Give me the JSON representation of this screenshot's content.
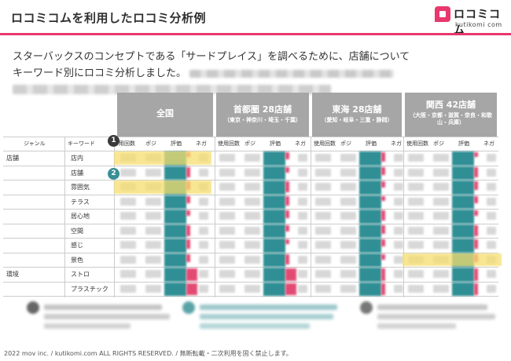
{
  "header": {
    "title": "ロコミコムを利用したロコミ分析例",
    "logo_jp": "ロコミコム",
    "logo_en": "kutikomi com",
    "accent_color": "#e8386d"
  },
  "intro": {
    "line1": "スターバックスのコンセプトである「サードプレイス」を調べるために、店舗について",
    "line2": "キーワード別にロコミ分析しました。"
  },
  "regions": [
    {
      "name": "全国",
      "sub": ""
    },
    {
      "name": "首都圏 28店舗",
      "sub": "（東京・神奈川・埼玉・千葉）"
    },
    {
      "name": "東海 28店舗",
      "sub": "（愛知・岐阜・三重・静岡）"
    },
    {
      "name": "関西 42店舗",
      "sub": "（大阪・京都・滋賀・奈良・和歌山・兵庫）"
    }
  ],
  "table": {
    "col_genre": "ジャンル",
    "col_keyword": "キーワード",
    "metric_headers": [
      "使用回数",
      "ポジ",
      "評価",
      "ネガ"
    ],
    "metric_headers_first": [
      "用回数",
      "ポジ",
      "評価",
      "ネガ"
    ],
    "rows": [
      {
        "genre": "店舗",
        "keyword": "店内"
      },
      {
        "genre": "",
        "keyword": "店舗"
      },
      {
        "genre": "",
        "keyword": "雰囲気"
      },
      {
        "genre": "",
        "keyword": "テラス"
      },
      {
        "genre": "",
        "keyword": "居心地"
      },
      {
        "genre": "",
        "keyword": "空間"
      },
      {
        "genre": "",
        "keyword": "感じ"
      },
      {
        "genre": "",
        "keyword": "景色"
      },
      {
        "genre": "環境",
        "keyword": "ストロ"
      },
      {
        "genre": "",
        "keyword": "プラスチック"
      }
    ]
  },
  "badges": [
    "1",
    "2"
  ],
  "footer": "2022 mov inc. / kutikomi.com ALL RIGHTS RESERVED. / 無断転載・二次利用を固く禁止します。"
}
